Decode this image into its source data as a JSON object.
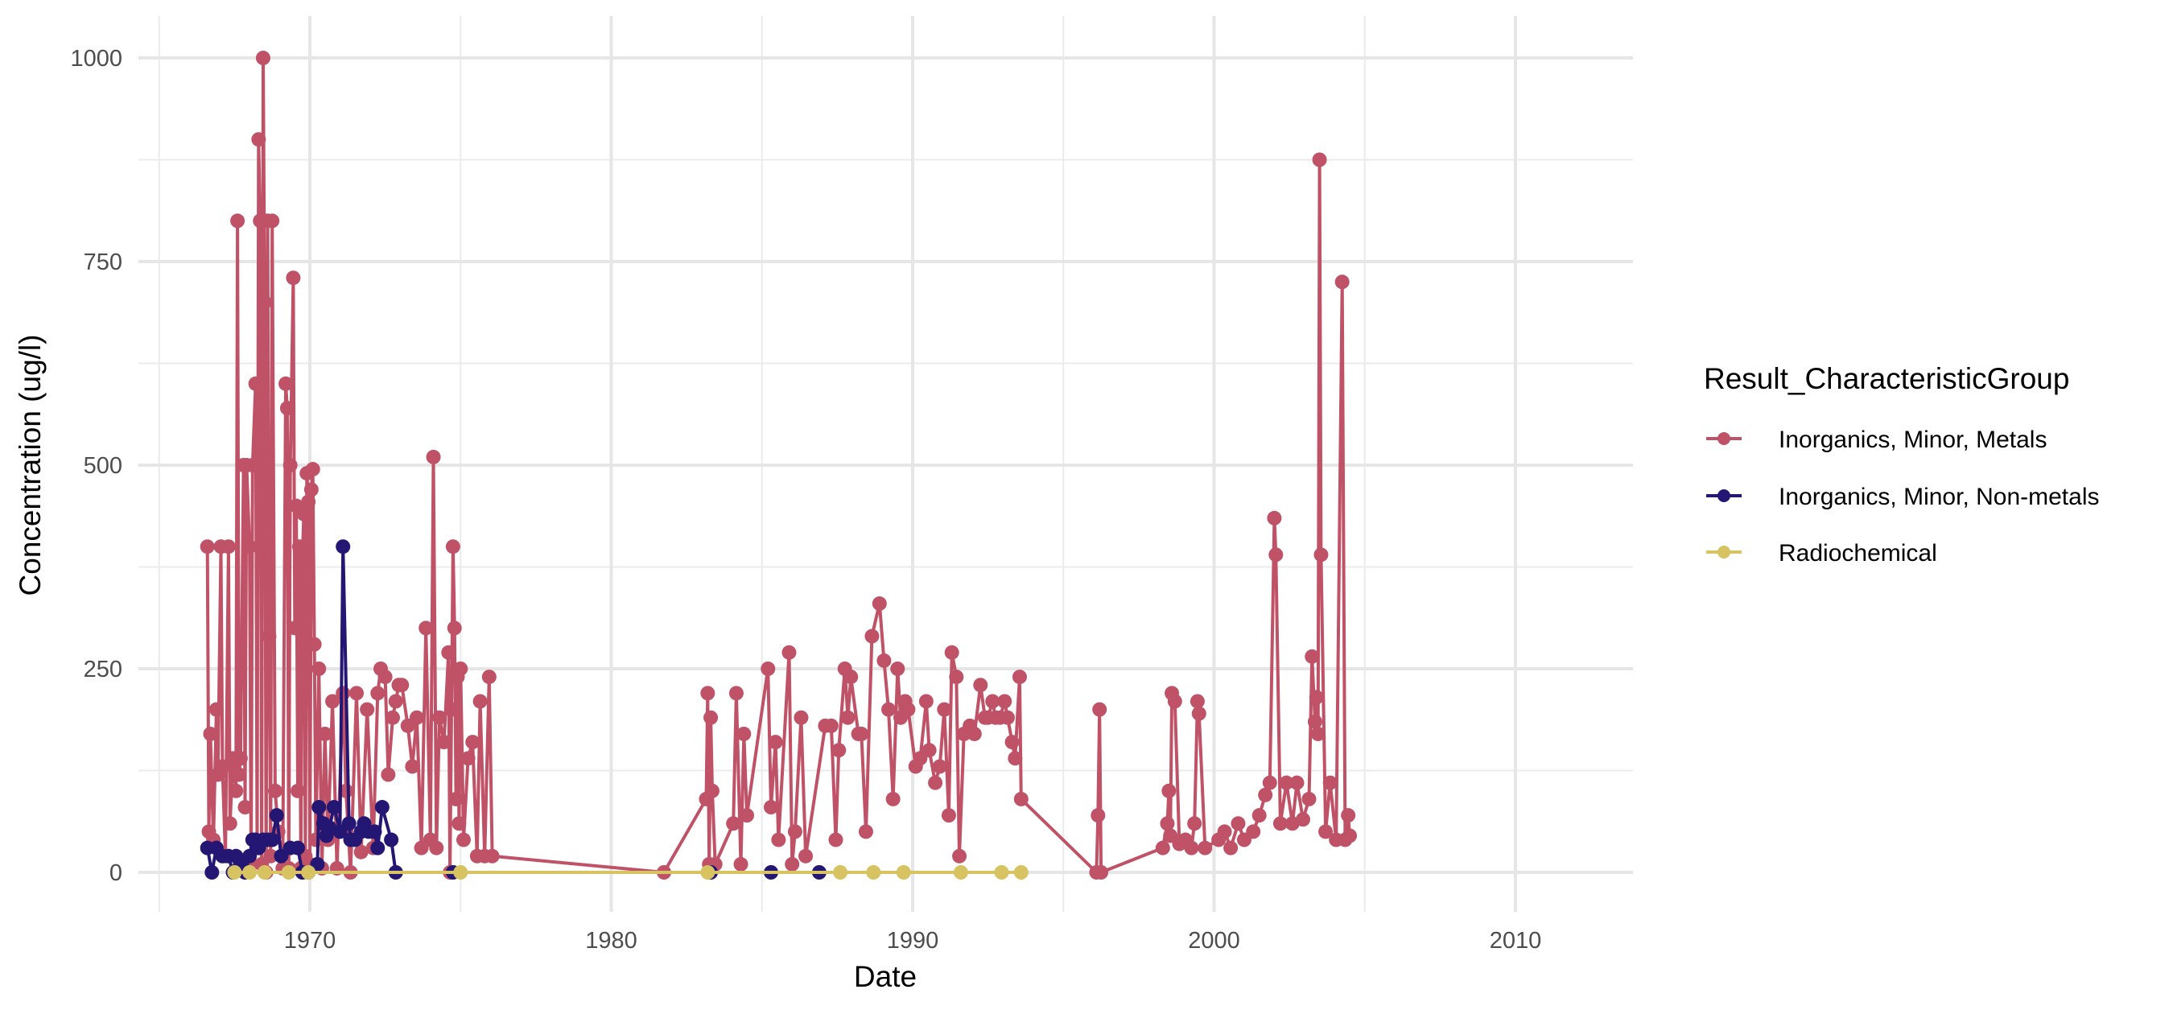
{
  "chart_data": {
    "type": "line",
    "title": "",
    "xlabel": "Date",
    "ylabel": "Concentration (ug/l)",
    "xlim": [
      1964.5,
      2014.1
    ],
    "ylim": [
      -34,
      1044
    ],
    "x_ticks": [
      1970,
      1980,
      1990,
      2000,
      2010
    ],
    "x_tick_labels": [
      "1970",
      "1980",
      "1990",
      "2000",
      "2010"
    ],
    "y_ticks": [
      0,
      250,
      500,
      750,
      1000
    ],
    "y_tick_labels": [
      "0",
      "250",
      "500",
      "750",
      "1000"
    ],
    "grid": true,
    "markers": true,
    "legend": {
      "title": "Result_CharacteristicGroup",
      "position": "right"
    },
    "series": [
      {
        "name": "Inorganics, Minor, Metals",
        "color": "#C05267",
        "points": [
          [
            1966.6,
            400
          ],
          [
            1966.65,
            50
          ],
          [
            1966.7,
            170
          ],
          [
            1966.8,
            40
          ],
          [
            1966.9,
            200
          ],
          [
            1966.95,
            120
          ],
          [
            1967.05,
            400
          ],
          [
            1967.1,
            130
          ],
          [
            1967.2,
            20
          ],
          [
            1967.3,
            400
          ],
          [
            1967.35,
            60
          ],
          [
            1967.45,
            140
          ],
          [
            1967.55,
            100
          ],
          [
            1967.6,
            800
          ],
          [
            1967.65,
            120
          ],
          [
            1967.7,
            140
          ],
          [
            1967.8,
            500
          ],
          [
            1967.85,
            80
          ],
          [
            1967.9,
            500
          ],
          [
            1968.0,
            400
          ],
          [
            1968.05,
            10
          ],
          [
            1968.1,
            500
          ],
          [
            1968.2,
            600
          ],
          [
            1968.25,
            30
          ],
          [
            1968.3,
            900
          ],
          [
            1968.35,
            800
          ],
          [
            1968.4,
            10
          ],
          [
            1968.45,
            1000
          ],
          [
            1968.5,
            700
          ],
          [
            1968.55,
            0
          ],
          [
            1968.6,
            800
          ],
          [
            1968.65,
            290
          ],
          [
            1968.7,
            20
          ],
          [
            1968.75,
            800
          ],
          [
            1968.85,
            100
          ],
          [
            1968.95,
            50
          ],
          [
            1969.1,
            5
          ],
          [
            1969.2,
            600
          ],
          [
            1969.25,
            570
          ],
          [
            1969.3,
            5
          ],
          [
            1969.35,
            500
          ],
          [
            1969.45,
            730
          ],
          [
            1969.5,
            300
          ],
          [
            1969.55,
            450
          ],
          [
            1969.6,
            100
          ],
          [
            1969.65,
            400
          ],
          [
            1969.7,
            5
          ],
          [
            1969.75,
            380
          ],
          [
            1969.8,
            440
          ],
          [
            1969.85,
            20
          ],
          [
            1969.9,
            490
          ],
          [
            1969.95,
            455
          ],
          [
            1970.0,
            10
          ],
          [
            1970.05,
            470
          ],
          [
            1970.1,
            495
          ],
          [
            1970.15,
            280
          ],
          [
            1970.2,
            40
          ],
          [
            1970.3,
            250
          ],
          [
            1970.4,
            5
          ],
          [
            1970.5,
            170
          ],
          [
            1970.6,
            40
          ],
          [
            1970.75,
            210
          ],
          [
            1970.9,
            5
          ],
          [
            1971.1,
            220
          ],
          [
            1971.2,
            100
          ],
          [
            1971.35,
            0
          ],
          [
            1971.55,
            220
          ],
          [
            1971.7,
            25
          ],
          [
            1971.9,
            200
          ],
          [
            1972.1,
            30
          ],
          [
            1972.25,
            220
          ],
          [
            1972.35,
            250
          ],
          [
            1972.5,
            240
          ],
          [
            1972.6,
            120
          ],
          [
            1972.75,
            190
          ],
          [
            1972.85,
            210
          ],
          [
            1972.95,
            230
          ],
          [
            1973.05,
            230
          ],
          [
            1973.25,
            180
          ],
          [
            1973.4,
            130
          ],
          [
            1973.55,
            190
          ],
          [
            1973.7,
            30
          ],
          [
            1973.85,
            300
          ],
          [
            1974.0,
            40
          ],
          [
            1974.1,
            510
          ],
          [
            1974.2,
            30
          ],
          [
            1974.3,
            190
          ],
          [
            1974.45,
            160
          ],
          [
            1974.6,
            270
          ],
          [
            1974.65,
            0
          ],
          [
            1974.7,
            200
          ],
          [
            1974.75,
            400
          ],
          [
            1974.8,
            300
          ],
          [
            1974.85,
            90
          ],
          [
            1974.9,
            240
          ],
          [
            1974.95,
            60
          ],
          [
            1975.0,
            250
          ],
          [
            1975.1,
            40
          ],
          [
            1975.25,
            140
          ],
          [
            1975.4,
            160
          ],
          [
            1975.55,
            20
          ],
          [
            1975.65,
            210
          ],
          [
            1975.8,
            20
          ],
          [
            1975.95,
            240
          ],
          [
            1976.05,
            20
          ],
          [
            1981.75,
            0
          ],
          [
            1983.15,
            90
          ],
          [
            1983.2,
            220
          ],
          [
            1983.25,
            10
          ],
          [
            1983.3,
            190
          ],
          [
            1983.35,
            100
          ],
          [
            1983.45,
            10
          ],
          [
            1984.05,
            60
          ],
          [
            1984.15,
            220
          ],
          [
            1984.3,
            10
          ],
          [
            1984.4,
            170
          ],
          [
            1984.5,
            70
          ],
          [
            1985.2,
            250
          ],
          [
            1985.3,
            80
          ],
          [
            1985.45,
            160
          ],
          [
            1985.55,
            40
          ],
          [
            1985.9,
            270
          ],
          [
            1986.0,
            10
          ],
          [
            1986.1,
            50
          ],
          [
            1986.3,
            190
          ],
          [
            1986.45,
            20
          ],
          [
            1987.1,
            180
          ],
          [
            1987.3,
            180
          ],
          [
            1987.45,
            40
          ],
          [
            1987.55,
            150
          ],
          [
            1987.75,
            250
          ],
          [
            1987.85,
            190
          ],
          [
            1987.95,
            240
          ],
          [
            1988.2,
            170
          ],
          [
            1988.3,
            170
          ],
          [
            1988.45,
            50
          ],
          [
            1988.65,
            290
          ],
          [
            1988.9,
            330
          ],
          [
            1989.05,
            260
          ],
          [
            1989.2,
            200
          ],
          [
            1989.35,
            90
          ],
          [
            1989.5,
            250
          ],
          [
            1989.6,
            190
          ],
          [
            1989.75,
            210
          ],
          [
            1989.85,
            200
          ],
          [
            1990.1,
            130
          ],
          [
            1990.25,
            140
          ],
          [
            1990.45,
            210
          ],
          [
            1990.55,
            150
          ],
          [
            1990.75,
            110
          ],
          [
            1990.9,
            130
          ],
          [
            1991.05,
            200
          ],
          [
            1991.2,
            70
          ],
          [
            1991.3,
            270
          ],
          [
            1991.45,
            240
          ],
          [
            1991.55,
            20
          ],
          [
            1991.7,
            170
          ],
          [
            1991.9,
            180
          ],
          [
            1992.05,
            170
          ],
          [
            1992.25,
            230
          ],
          [
            1992.4,
            190
          ],
          [
            1992.5,
            190
          ],
          [
            1992.65,
            210
          ],
          [
            1992.75,
            190
          ],
          [
            1992.9,
            190
          ],
          [
            1993.05,
            210
          ],
          [
            1993.15,
            190
          ],
          [
            1993.3,
            160
          ],
          [
            1993.4,
            140
          ],
          [
            1993.55,
            240
          ],
          [
            1993.6,
            90
          ],
          [
            1996.1,
            0
          ],
          [
            1996.15,
            70
          ],
          [
            1996.2,
            200
          ],
          [
            1996.25,
            0
          ],
          [
            1998.3,
            30
          ],
          [
            1998.45,
            60
          ],
          [
            1998.5,
            100
          ],
          [
            1998.55,
            45
          ],
          [
            1998.6,
            220
          ],
          [
            1998.7,
            210
          ],
          [
            1998.85,
            35
          ],
          [
            1999.05,
            40
          ],
          [
            1999.25,
            30
          ],
          [
            1999.35,
            60
          ],
          [
            1999.45,
            210
          ],
          [
            1999.5,
            195
          ],
          [
            1999.7,
            30
          ],
          [
            2000.15,
            40
          ],
          [
            2000.35,
            50
          ],
          [
            2000.55,
            30
          ],
          [
            2000.8,
            60
          ],
          [
            2001.0,
            40
          ],
          [
            2001.3,
            50
          ],
          [
            2001.5,
            70
          ],
          [
            2001.7,
            95
          ],
          [
            2001.85,
            110
          ],
          [
            2002.0,
            435
          ],
          [
            2002.05,
            390
          ],
          [
            2002.2,
            60
          ],
          [
            2002.4,
            110
          ],
          [
            2002.6,
            60
          ],
          [
            2002.75,
            110
          ],
          [
            2002.95,
            65
          ],
          [
            2003.15,
            90
          ],
          [
            2003.25,
            265
          ],
          [
            2003.35,
            185
          ],
          [
            2003.4,
            215
          ],
          [
            2003.45,
            170
          ],
          [
            2003.5,
            875
          ],
          [
            2003.55,
            390
          ],
          [
            2003.7,
            50
          ],
          [
            2003.85,
            110
          ],
          [
            2004.05,
            40
          ],
          [
            2004.25,
            725
          ],
          [
            2004.35,
            40
          ],
          [
            2004.45,
            70
          ],
          [
            2004.5,
            45
          ]
        ]
      },
      {
        "name": "Inorganics, Minor, Non-metals",
        "color": "#241774",
        "points": [
          [
            1966.6,
            30
          ],
          [
            1966.75,
            0
          ],
          [
            1966.9,
            30
          ],
          [
            1967.1,
            20
          ],
          [
            1967.3,
            20
          ],
          [
            1967.45,
            0
          ],
          [
            1967.55,
            20
          ],
          [
            1967.7,
            15
          ],
          [
            1967.85,
            0
          ],
          [
            1968.0,
            20
          ],
          [
            1968.1,
            40
          ],
          [
            1968.2,
            40
          ],
          [
            1968.3,
            30
          ],
          [
            1968.45,
            40
          ],
          [
            1968.6,
            40
          ],
          [
            1968.75,
            40
          ],
          [
            1968.9,
            70
          ],
          [
            1969.05,
            20
          ],
          [
            1969.35,
            30
          ],
          [
            1969.6,
            30
          ],
          [
            1969.75,
            0
          ],
          [
            1969.95,
            0
          ],
          [
            1970.25,
            10
          ],
          [
            1970.3,
            80
          ],
          [
            1970.45,
            60
          ],
          [
            1970.55,
            45
          ],
          [
            1970.65,
            55
          ],
          [
            1970.8,
            80
          ],
          [
            1971.0,
            50
          ],
          [
            1971.1,
            400
          ],
          [
            1971.3,
            60
          ],
          [
            1971.35,
            40
          ],
          [
            1971.5,
            40
          ],
          [
            1971.7,
            50
          ],
          [
            1971.8,
            60
          ],
          [
            1971.95,
            50
          ],
          [
            1972.15,
            50
          ],
          [
            1972.25,
            30
          ],
          [
            1972.4,
            80
          ],
          [
            1972.7,
            40
          ],
          [
            1972.85,
            0
          ],
          [
            1974.75,
            0
          ],
          [
            1983.3,
            0
          ],
          [
            1985.3,
            0
          ],
          [
            1986.9,
            0
          ]
        ]
      },
      {
        "name": "Radiochemical",
        "color": "#D8C363",
        "points": [
          [
            1967.5,
            0
          ],
          [
            1968.0,
            0
          ],
          [
            1968.5,
            0
          ],
          [
            1969.3,
            0
          ],
          [
            1969.95,
            0
          ],
          [
            1975.0,
            0
          ],
          [
            1983.2,
            0
          ],
          [
            1987.6,
            0
          ],
          [
            1988.7,
            0
          ],
          [
            1989.7,
            0
          ],
          [
            1991.6,
            0
          ],
          [
            1992.95,
            0
          ],
          [
            1993.6,
            0
          ]
        ]
      }
    ]
  }
}
